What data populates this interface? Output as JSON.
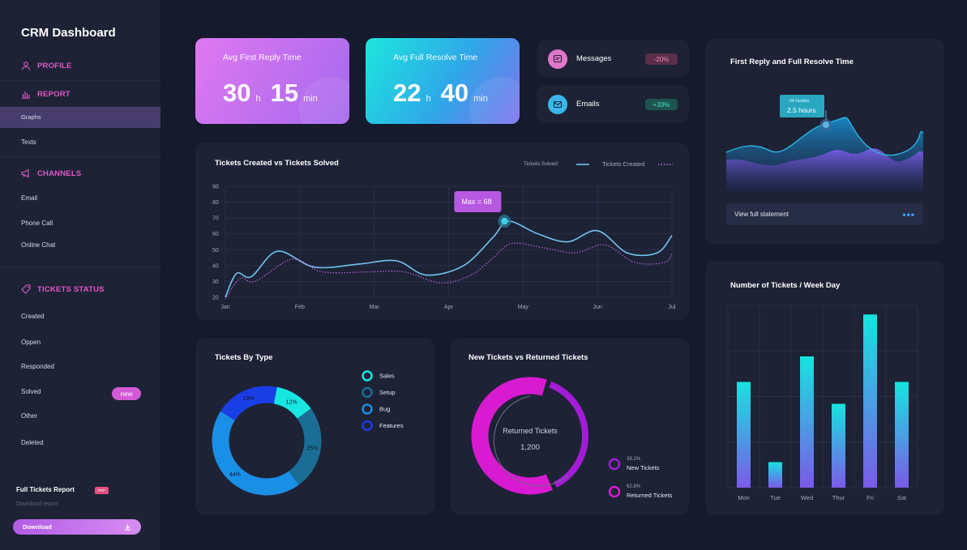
{
  "sidebar": {
    "brand": "CRM Dashboard",
    "profile": "PROFILE",
    "report": "REPORT",
    "report_items": [
      "Graphs",
      "Texts"
    ],
    "channels": "CHANNELS",
    "channel_items": [
      "Email",
      "Phone Call",
      "Online Chat"
    ],
    "tickets_status": "TICKETS STATUS",
    "status_items": [
      "Created",
      "Oppen",
      "Responded",
      "Solved",
      "Other",
      "Deleted"
    ],
    "new_badge": "new",
    "full_report": "Full Tickets Report",
    "pdf": "PDF",
    "download_report": "Download report",
    "download_button": "Download"
  },
  "stats": {
    "reply": {
      "label": "Avg First Reply Time",
      "hours": "30",
      "h": "h",
      "minutes": "15",
      "min": "min"
    },
    "resolve": {
      "label": "Avg Full Resolve Time",
      "hours": "22",
      "h": "h",
      "minutes": "40",
      "min": "min"
    }
  },
  "pills": {
    "messages": {
      "label": "Messages",
      "change": "-20%"
    },
    "emails": {
      "label": "Emails",
      "change": "+33%"
    }
  },
  "tickets_chart": {
    "title": "Tickets Created vs Tickets Solved",
    "legend_solved": "Tickets Solved",
    "legend_created": "Tickets Created",
    "max_label": "Max = 68"
  },
  "resolve_card": {
    "title": "First Reply and Full Resolve Time",
    "tooltip_date": "04 October",
    "tooltip_value": "2.5 hours",
    "statement": "View full statement"
  },
  "type_card": {
    "title": "Tickets By Type",
    "legend": [
      "Sales",
      "Setup",
      "Bug",
      "Features"
    ]
  },
  "returned_card": {
    "title": "New Tickets vs Returned Tickets",
    "center_label": "Returned Tickets",
    "center_value": "1,200",
    "new_pct": "38.2%",
    "new_label": "New Tickets",
    "returned_pct": "62.8%",
    "returned_label": "Returned Tickets"
  },
  "weekday_card": {
    "title": "Number of Tickets / Week Day"
  },
  "chart_data": [
    {
      "type": "line",
      "title": "Tickets Created vs Tickets Solved",
      "x": [
        "Jan",
        "Feb",
        "Mar",
        "Apr",
        "May",
        "Jun",
        "Jul"
      ],
      "yticks": [
        20,
        30,
        40,
        50,
        60,
        70,
        80,
        90
      ],
      "ylim": [
        20,
        90
      ],
      "series": [
        {
          "name": "Tickets Solved",
          "color": "#6fc4f0",
          "style": "solid",
          "points": [
            [
              0,
              20
            ],
            [
              0.15,
              35
            ],
            [
              0.35,
              33
            ],
            [
              0.7,
              49
            ],
            [
              1.2,
              39
            ],
            [
              1.8,
              41
            ],
            [
              2.3,
              43
            ],
            [
              2.7,
              34
            ],
            [
              3.2,
              40
            ],
            [
              3.6,
              58
            ],
            [
              3.8,
              68
            ],
            [
              4.2,
              60
            ],
            [
              4.6,
              55
            ],
            [
              5.0,
              62
            ],
            [
              5.4,
              48
            ],
            [
              5.8,
              48
            ],
            [
              6.0,
              59
            ]
          ]
        },
        {
          "name": "Tickets Created",
          "color": "#c56be0",
          "style": "dotted",
          "points": [
            [
              0,
              19
            ],
            [
              0.2,
              32
            ],
            [
              0.4,
              30
            ],
            [
              0.9,
              44
            ],
            [
              1.3,
              36
            ],
            [
              1.9,
              36
            ],
            [
              2.4,
              36
            ],
            [
              2.9,
              29
            ],
            [
              3.3,
              34
            ],
            [
              3.6,
              45
            ],
            [
              3.85,
              54
            ],
            [
              4.3,
              51
            ],
            [
              4.7,
              48
            ],
            [
              5.1,
              53
            ],
            [
              5.5,
              42
            ],
            [
              5.9,
              42
            ],
            [
              6.0,
              48
            ]
          ]
        }
      ],
      "max": {
        "x": 3.75,
        "y": 68
      }
    },
    {
      "type": "area",
      "title": "First Reply and Full Resolve Time",
      "tooltip": {
        "date": "04 October",
        "value": "2.5 hours"
      }
    },
    {
      "type": "pie",
      "title": "Tickets By Type",
      "labels": [
        "Sales",
        "Setup",
        "Bug",
        "Features"
      ],
      "values": [
        12,
        25,
        44,
        19
      ],
      "colors": [
        "#18e6e2",
        "#1a6e96",
        "#1a8fe6",
        "#1a3ee6"
      ]
    },
    {
      "type": "pie",
      "title": "New Tickets vs Returned Tickets",
      "labels": [
        "New Tickets",
        "Returned Tickets"
      ],
      "values": [
        38.2,
        62.8
      ],
      "colors": [
        "#a21cd6",
        "#d81ad1"
      ]
    },
    {
      "type": "bar",
      "title": "Number of Tickets / Week Day",
      "categories": [
        "Mon",
        "Tue",
        "Wed",
        "Thur",
        "Fri",
        "Sat"
      ],
      "values": [
        58,
        14,
        72,
        46,
        95,
        58
      ],
      "ylim": [
        0,
        100
      ]
    }
  ]
}
